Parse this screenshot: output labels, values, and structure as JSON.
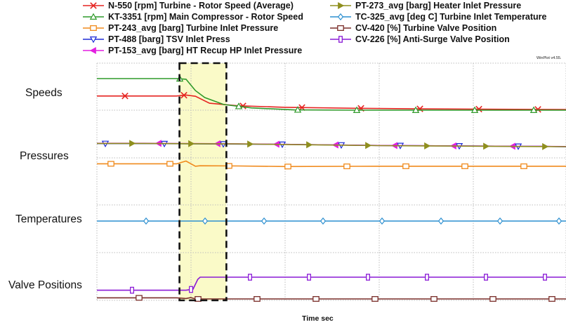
{
  "watermark": "WinPlot v4.55.",
  "chart_data": {
    "type": "line",
    "xlabel": "Time sec",
    "x_ticks_visible": false,
    "grid": true,
    "legend_placement": "top",
    "bands": [
      {
        "label": "Speeds"
      },
      {
        "label": "Pressures"
      },
      {
        "label": "Temperatures"
      },
      {
        "label": "Valve Positions"
      }
    ],
    "highlight": {
      "x_start": 0.176,
      "x_end": 0.276,
      "fill": "#fafac8",
      "style": "dashed-box"
    },
    "series": [
      {
        "name": "N-550 [rpm] Turbine - Rotor Speed (Average)",
        "band": 0,
        "color": "#e52421",
        "marker": "x",
        "x": [
          0,
          0.17,
          0.19,
          0.21,
          0.24,
          0.3,
          0.4,
          0.55,
          0.7,
          0.85,
          1.0
        ],
        "y": [
          0.45,
          0.45,
          0.48,
          0.44,
          0.22,
          0.14,
          0.09,
          0.06,
          0.04,
          0.03,
          0.02
        ]
      },
      {
        "name": "KT-3351 [rpm] Main Compressor - Rotor Speed",
        "band": 0,
        "color": "#2f9a2a",
        "marker": "triangle-up",
        "x": [
          0,
          0.17,
          0.19,
          0.21,
          0.23,
          0.27,
          0.33,
          0.42,
          0.55,
          0.7,
          0.85,
          1.0
        ],
        "y": [
          1.0,
          1.0,
          0.98,
          0.62,
          0.4,
          0.18,
          0.07,
          0.01,
          0.0,
          0.0,
          0.0,
          0.0
        ]
      },
      {
        "name": "PT-243_avg [barg] Turbine Inlet Pressure",
        "band": 1,
        "color": "#f08a1c",
        "marker": "square",
        "x": [
          0,
          0.17,
          0.19,
          0.21,
          0.22,
          0.3,
          0.4,
          0.6,
          0.8,
          1.0
        ],
        "y": [
          0.22,
          0.22,
          0.32,
          0.13,
          0.15,
          0.14,
          0.12,
          0.13,
          0.13,
          0.13
        ]
      },
      {
        "name": "PT-488 [barg] TSV Inlet Press",
        "band": 1,
        "color": "#1e2bd6",
        "marker": "triangle-down",
        "x": [
          0,
          0.1,
          0.2,
          0.3,
          0.4,
          0.5,
          0.6,
          0.7,
          0.8,
          0.9,
          0.95,
          1.0
        ],
        "y": [
          0.96,
          0.96,
          0.95,
          0.94,
          0.93,
          0.91,
          0.89,
          0.88,
          0.87,
          0.86,
          0.86,
          0.84
        ]
      },
      {
        "name": "PT-153_avg [barg] HT Recup HP Inlet Pressure",
        "band": 1,
        "color": "#e31fe0",
        "marker": "triangle-left",
        "x": [
          0,
          0.1,
          0.2,
          0.3,
          0.4,
          0.5,
          0.6,
          0.7,
          0.8,
          0.9,
          1.0
        ],
        "y": [
          0.97,
          0.97,
          0.96,
          0.95,
          0.93,
          0.91,
          0.89,
          0.88,
          0.87,
          0.86,
          0.85
        ]
      },
      {
        "name": "PT-273_avg [barg] Heater Inlet Pressure",
        "band": 1,
        "color": "#8f8f1e",
        "marker": "triangle-right",
        "x": [
          0,
          0.1,
          0.2,
          0.3,
          0.4,
          0.5,
          0.6,
          0.7,
          0.8,
          0.9,
          1.0
        ],
        "y": [
          0.965,
          0.965,
          0.955,
          0.945,
          0.925,
          0.905,
          0.885,
          0.875,
          0.865,
          0.855,
          0.845
        ]
      },
      {
        "name": "TC-325_avg [deg C] Turbine Inlet Temperature",
        "band": 2,
        "color": "#2c8fd0",
        "marker": "diamond",
        "x": [
          0,
          0.25,
          0.5,
          0.75,
          1.0
        ],
        "y": [
          0.3,
          0.3,
          0.3,
          0.3,
          0.3
        ]
      },
      {
        "name": "CV-420 [%] Turbine Valve Position",
        "band": 3,
        "color": "#7a2e2a",
        "marker": "square",
        "x": [
          0,
          0.17,
          0.19,
          0.2,
          0.21,
          0.23,
          0.4,
          0.6,
          0.8,
          1.0
        ],
        "y": [
          0.05,
          0.05,
          0.02,
          0.06,
          0.0,
          0.0,
          0.0,
          0.0,
          0.0,
          0.0
        ]
      },
      {
        "name": "CV-226 [%] Anti-Surge Valve Position",
        "band": 3,
        "color": "#8a1ad6",
        "marker": "bar",
        "x": [
          0,
          0.19,
          0.205,
          0.215,
          0.22,
          0.4,
          0.6,
          0.8,
          1.0
        ],
        "y": [
          0.4,
          0.4,
          0.45,
          0.9,
          1.0,
          1.0,
          1.0,
          1.0,
          1.0
        ]
      }
    ]
  }
}
